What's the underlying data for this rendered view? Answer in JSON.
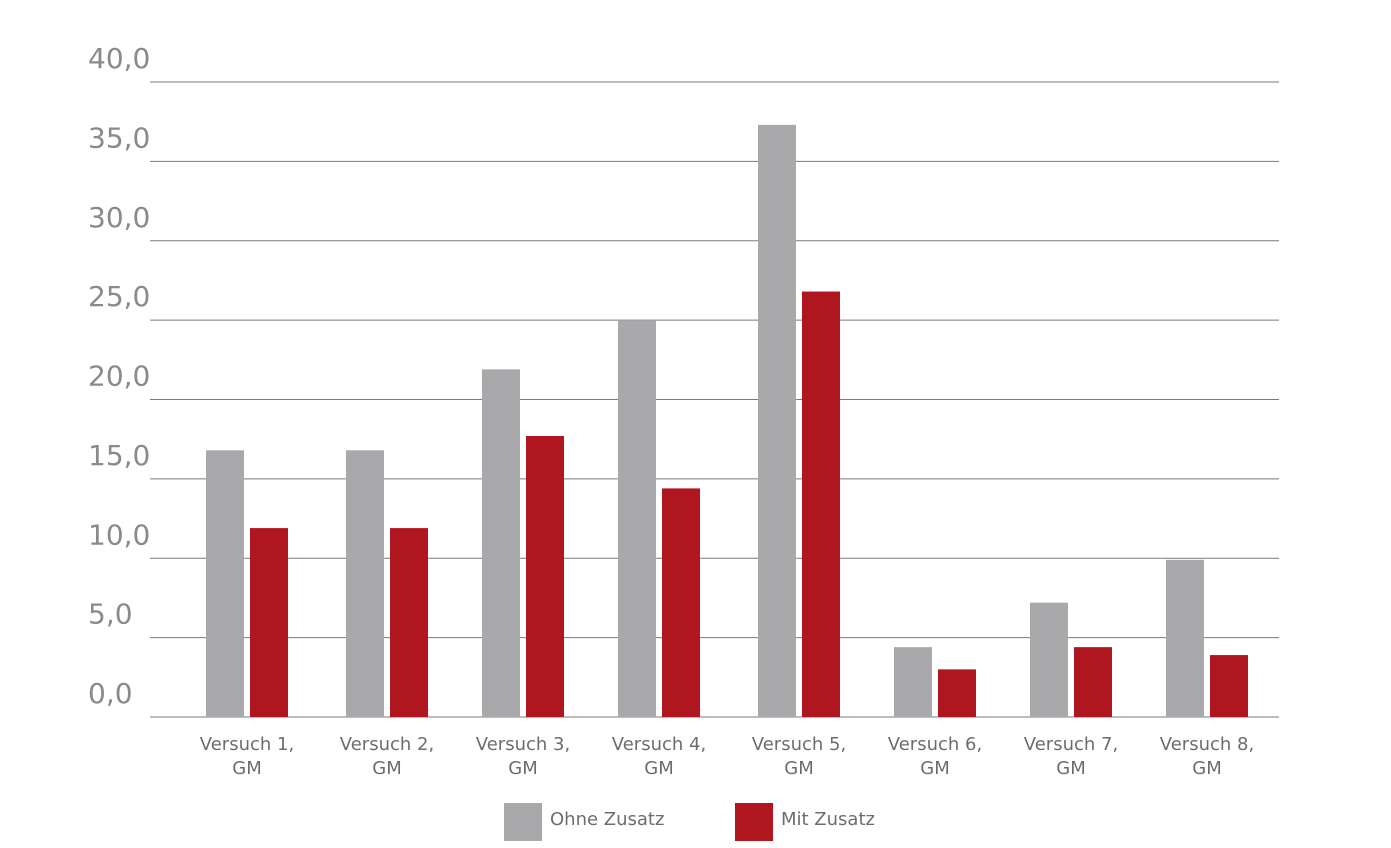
{
  "chart_data": {
    "type": "bar",
    "title": "",
    "xlabel": "",
    "ylabel": "",
    "categories": [
      [
        "Versuch 1,",
        "GM"
      ],
      [
        "Versuch 2,",
        "GM"
      ],
      [
        "Versuch 3,",
        "GM"
      ],
      [
        "Versuch 4,",
        "GM"
      ],
      [
        "Versuch 5,",
        "GM"
      ],
      [
        "Versuch 6,",
        "GM"
      ],
      [
        "Versuch 7,",
        "GM"
      ],
      [
        "Versuch 8,",
        "GM"
      ]
    ],
    "series": [
      {
        "name": "Ohne Zusatz",
        "color": "#a9a9ab",
        "values": [
          16.8,
          16.8,
          21.9,
          25.0,
          37.3,
          4.4,
          7.2,
          9.9
        ]
      },
      {
        "name": "Mit Zusatz",
        "color": "#b0161f",
        "values": [
          11.9,
          11.9,
          17.7,
          14.4,
          26.8,
          3.0,
          4.4,
          3.9
        ]
      }
    ],
    "ylim": [
      0,
      40
    ],
    "yticks": [
      "0,0",
      "5,0",
      "10,0",
      "15,0",
      "20,0",
      "25,0",
      "30,0",
      "35,0",
      "40,0"
    ],
    "ytick_values": [
      0,
      5,
      10,
      15,
      20,
      25,
      30,
      35,
      40
    ],
    "grid": true,
    "legend_position": "bottom-center"
  }
}
